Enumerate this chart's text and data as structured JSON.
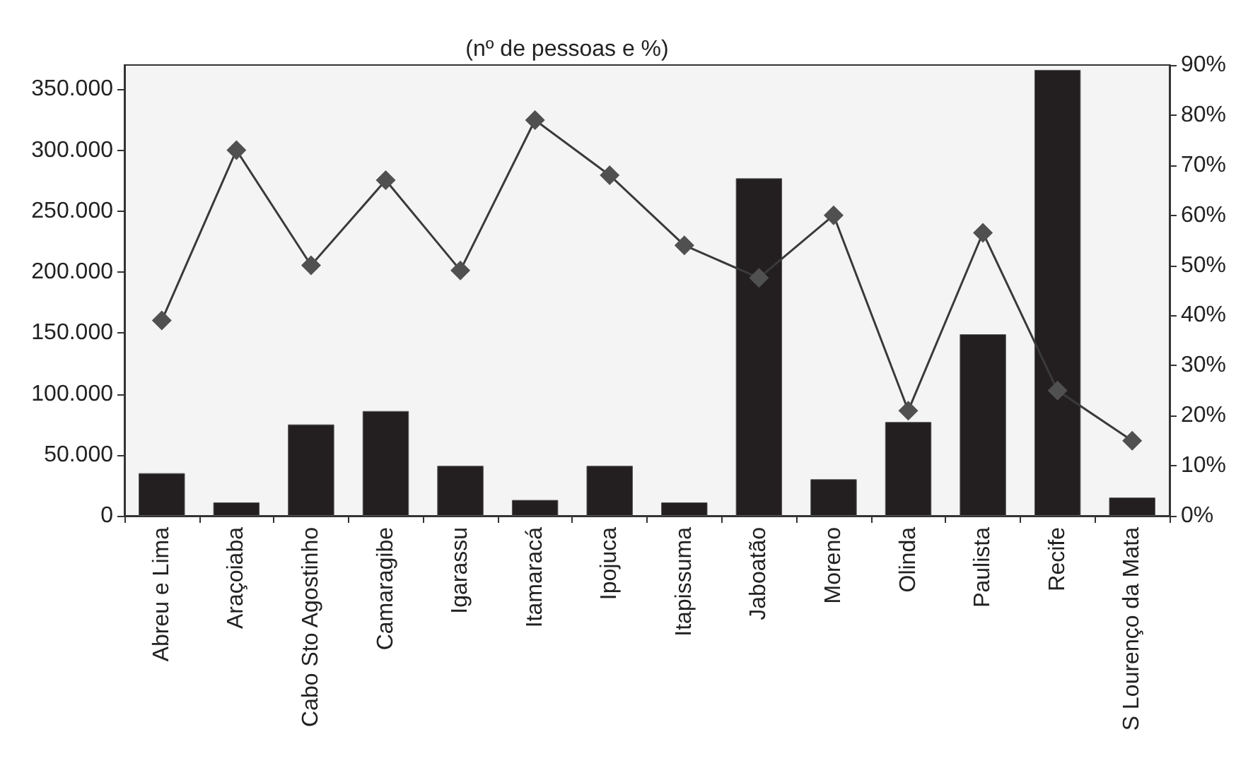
{
  "chart_data": {
    "type": "bar",
    "title": "(nº de pessoas e %)",
    "categories": [
      "Abreu e Lima",
      "Araçoiaba",
      "Cabo Sto Agostinho",
      "Camaragibe",
      "Igarassu",
      "Itamaracá",
      "Ipojuca",
      "Itapissuma",
      "Jaboatão",
      "Moreno",
      "Olinda",
      "Paulista",
      "Recife",
      "S Lourenço da Mata"
    ],
    "series": [
      {
        "color": "#231f20",
        "values": [
          35000,
          11000,
          75000,
          86000,
          41000,
          13000,
          41000,
          11000,
          277000,
          30000,
          77000,
          149000,
          366000,
          15000
        ]
      },
      {
        "type": "line",
        "axis": "y2",
        "color": "#3a3a3a",
        "marker": "diamond",
        "values": [
          39,
          73,
          50,
          67,
          49,
          79,
          68,
          54,
          47.5,
          60,
          21,
          56.5,
          25,
          15
        ]
      }
    ],
    "ylim": [
      0,
      370000
    ],
    "yticks": [
      {
        "value": 0,
        "label": "0"
      },
      {
        "value": 50000,
        "label": "50.000"
      },
      {
        "value": 100000,
        "label": "100.000"
      },
      {
        "value": 150000,
        "label": "150.000"
      },
      {
        "value": 200000,
        "label": "200.000"
      },
      {
        "value": 250000,
        "label": "250.000"
      },
      {
        "value": 300000,
        "label": "300.000"
      },
      {
        "value": 350000,
        "label": "350.000"
      }
    ],
    "y2lim": [
      0,
      90
    ],
    "y2ticks": [
      {
        "value": 0,
        "label": "0%"
      },
      {
        "value": 10,
        "label": "10%"
      },
      {
        "value": 20,
        "label": "20%"
      },
      {
        "value": 30,
        "label": "30%"
      },
      {
        "value": 40,
        "label": "40%"
      },
      {
        "value": 50,
        "label": "50%"
      },
      {
        "value": 60,
        "label": "60%"
      },
      {
        "value": 70,
        "label": "70%"
      },
      {
        "value": 80,
        "label": "80%"
      },
      {
        "value": 90,
        "label": "90%"
      }
    ],
    "grid": false
  }
}
